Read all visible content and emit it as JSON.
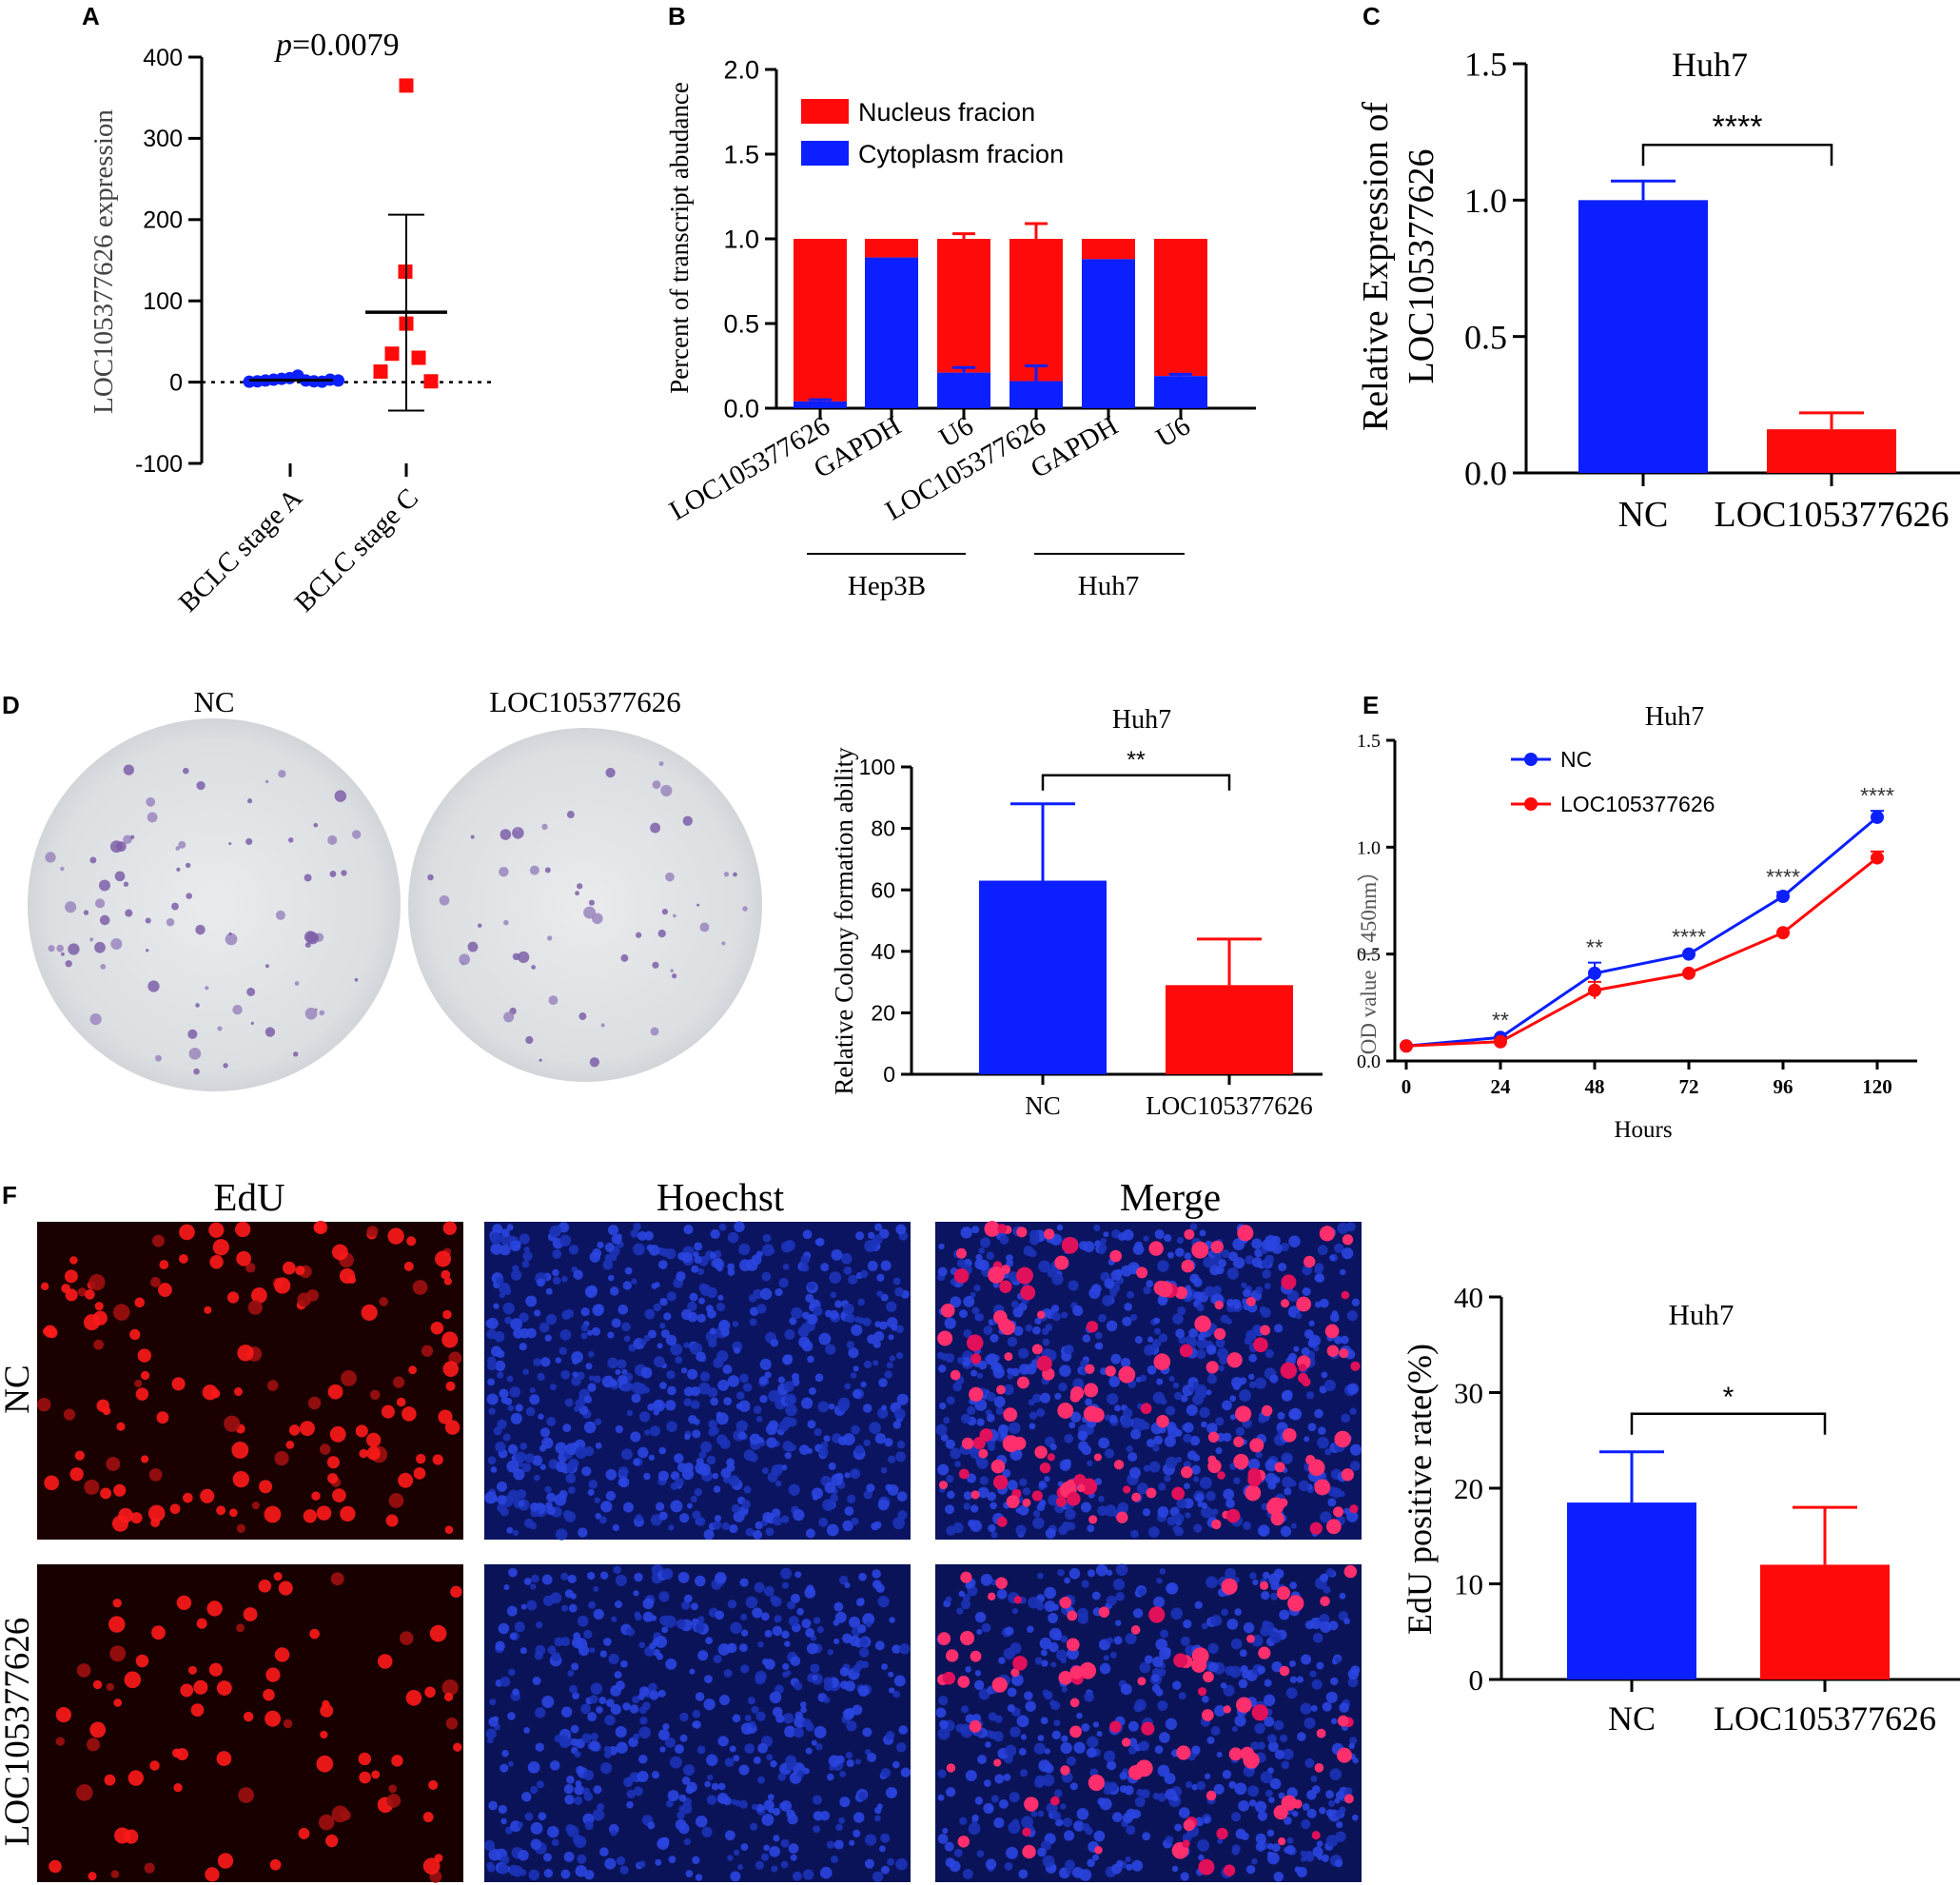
{
  "colors": {
    "blue": "#0b1fff",
    "red": "#ff0a0a",
    "black": "#000000"
  },
  "panel_labels": [
    "A",
    "B",
    "C",
    "D",
    "E",
    "F"
  ],
  "micro": {
    "D": {
      "captions": [
        "NC",
        "LOC105377626"
      ]
    },
    "F": {
      "columns": [
        "EdU",
        "Hoechst",
        "Merge"
      ],
      "rows": [
        "NC",
        "LOC105377626"
      ]
    }
  },
  "chart_data": [
    {
      "id": "A",
      "type": "scatter",
      "ylabel": "LOC105377626 expression",
      "categories": [
        "BCLC stage A",
        "BCLC stage C"
      ],
      "ylim": [
        -100,
        400
      ],
      "yticks": [
        "-100",
        "0",
        "100",
        "200",
        "300",
        "400"
      ],
      "annotation": {
        "italic": "p",
        "text": "=0.0079"
      },
      "series": [
        {
          "name": "BCLC stage A",
          "color": "#0b1fff",
          "marker": "circle",
          "values": [
            0.5,
            1,
            2,
            3,
            4,
            5,
            8,
            2,
            1,
            0.5,
            3,
            2
          ],
          "mean": 2.5,
          "sd_low": -1,
          "sd_high": 6
        },
        {
          "name": "BCLC stage C",
          "color": "#ff0a0a",
          "marker": "square",
          "values": [
            365,
            136,
            72,
            35,
            13,
            30,
            1
          ],
          "mean": 86,
          "sd_low": -35,
          "sd_high": 206
        }
      ]
    },
    {
      "id": "B",
      "type": "bar",
      "stacked": true,
      "ylabel": "Percent of transcript abudance",
      "categories": [
        "LOC105377626",
        "GAPDH",
        "U6",
        "LOC105377626",
        "GAPDH",
        "U6"
      ],
      "groups": [
        {
          "name": "Hep3B",
          "span": [
            0,
            2
          ]
        },
        {
          "name": "Huh7",
          "span": [
            3,
            5
          ]
        }
      ],
      "ylim": [
        0,
        2.0
      ],
      "yticks": [
        "0.0",
        "0.5",
        "1.0",
        "1.5",
        "2.0"
      ],
      "legend": [
        "Nucleus fracion",
        "Cytoplasm fracion"
      ],
      "series": [
        {
          "name": "Cytoplasm fracion",
          "color": "#0b1fff",
          "values": [
            0.04,
            0.89,
            0.21,
            0.16,
            0.88,
            0.19
          ],
          "errors": [
            0.01,
            0.005,
            0.03,
            0.09,
            0.005,
            0.01
          ]
        },
        {
          "name": "Nucleus fracion",
          "color": "#ff0a0a",
          "values": [
            0.96,
            0.11,
            0.79,
            0.84,
            0.12,
            0.81
          ],
          "errors": [
            0.005,
            0.005,
            0.03,
            0.09,
            0.005,
            0.005
          ]
        }
      ]
    },
    {
      "id": "C",
      "type": "bar",
      "title": "Huh7",
      "ylabel": [
        "Relative Expression of",
        "LOC105377626"
      ],
      "categories": [
        "NC",
        "LOC105377626"
      ],
      "ylim": [
        0,
        1.5
      ],
      "yticks": [
        "0.0",
        "0.5",
        "1.0",
        "1.5"
      ],
      "values": [
        1.0,
        0.16
      ],
      "errors": [
        0.07,
        0.06
      ],
      "colors": [
        "#0b1fff",
        "#ff0a0a"
      ],
      "significance": "****"
    },
    {
      "id": "D",
      "type": "bar",
      "title": "Huh7",
      "ylabel": "Relative Colony formation ability",
      "categories": [
        "NC",
        "LOC105377626"
      ],
      "ylim": [
        0,
        100
      ],
      "yticks": [
        "0",
        "20",
        "40",
        "60",
        "80",
        "100"
      ],
      "values": [
        63,
        29
      ],
      "errors": [
        25,
        15
      ],
      "colors": [
        "#0b1fff",
        "#ff0a0a"
      ],
      "significance": "**"
    },
    {
      "id": "E",
      "type": "line",
      "title": "Huh7",
      "xlabel": "Hours",
      "ylabel": "OD value（ 450nm）",
      "x": [
        0,
        24,
        48,
        72,
        96,
        120
      ],
      "xticks": [
        "0",
        "24",
        "48",
        "72",
        "96",
        "120"
      ],
      "ylim": [
        0,
        1.5
      ],
      "yticks": [
        "0.0",
        "0.5",
        "1.0",
        "1.5"
      ],
      "series": [
        {
          "name": "NC",
          "color": "#0b1fff",
          "values": [
            0.07,
            0.11,
            0.41,
            0.5,
            0.77,
            1.14
          ],
          "errors": [
            0.01,
            0.01,
            0.05,
            0.01,
            0.02,
            0.03
          ]
        },
        {
          "name": "LOC105377626",
          "color": "#ff0a0a",
          "values": [
            0.07,
            0.09,
            0.33,
            0.41,
            0.6,
            0.95
          ],
          "errors": [
            0.01,
            0.01,
            0.04,
            0.01,
            0.01,
            0.03
          ]
        }
      ],
      "significance": [
        "",
        "**",
        "**",
        "****",
        "****",
        "****"
      ]
    },
    {
      "id": "F",
      "type": "bar",
      "title": "Huh7",
      "ylabel": "EdU positive rate(%)",
      "categories": [
        "NC",
        "LOC105377626"
      ],
      "ylim": [
        0,
        40
      ],
      "yticks": [
        "0",
        "10",
        "20",
        "30",
        "40"
      ],
      "values": [
        18.5,
        12
      ],
      "errors": [
        5.3,
        6
      ],
      "colors": [
        "#0b1fff",
        "#ff0a0a"
      ],
      "significance": "*"
    }
  ]
}
